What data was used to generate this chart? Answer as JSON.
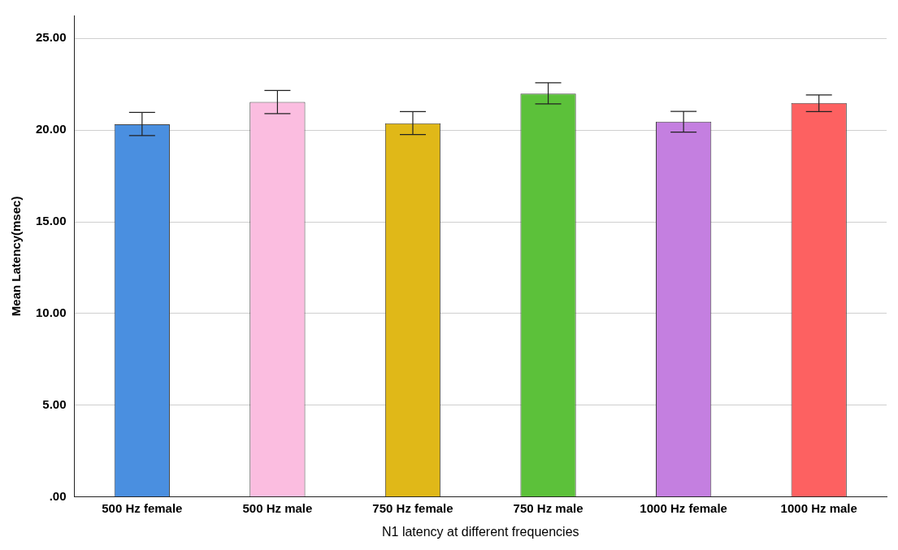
{
  "chart_data": {
    "type": "bar",
    "xlabel": "N1 latency at different frequencies",
    "ylabel": "Mean Latency(msec)",
    "categories": [
      "500 Hz female",
      "500 Hz male",
      "750 Hz female",
      "750 Hz male",
      "1000 Hz female",
      "1000 Hz male"
    ],
    "values": [
      20.32,
      21.53,
      20.37,
      21.99,
      20.46,
      21.48
    ],
    "colors": [
      "#4a8fe0",
      "#fbbde0",
      "#e0b818",
      "#5cc13a",
      "#c47fe0",
      "#fd6161"
    ],
    "errors": [
      [
        19.7,
        20.96
      ],
      [
        20.9,
        22.16
      ],
      [
        19.76,
        21.01
      ],
      [
        21.43,
        22.58
      ],
      [
        19.89,
        21.02
      ],
      [
        21.01,
        21.92
      ]
    ],
    "ylim": [
      0,
      26.25
    ],
    "yticks": [
      {
        "value": 0,
        "label": ".00"
      },
      {
        "value": 5,
        "label": "5.00"
      },
      {
        "value": 10,
        "label": "10.00"
      },
      {
        "value": 15,
        "label": "15.00"
      },
      {
        "value": 20,
        "label": "20.00"
      },
      {
        "value": 25,
        "label": "25.00"
      }
    ],
    "grid": "y",
    "legend": false
  }
}
